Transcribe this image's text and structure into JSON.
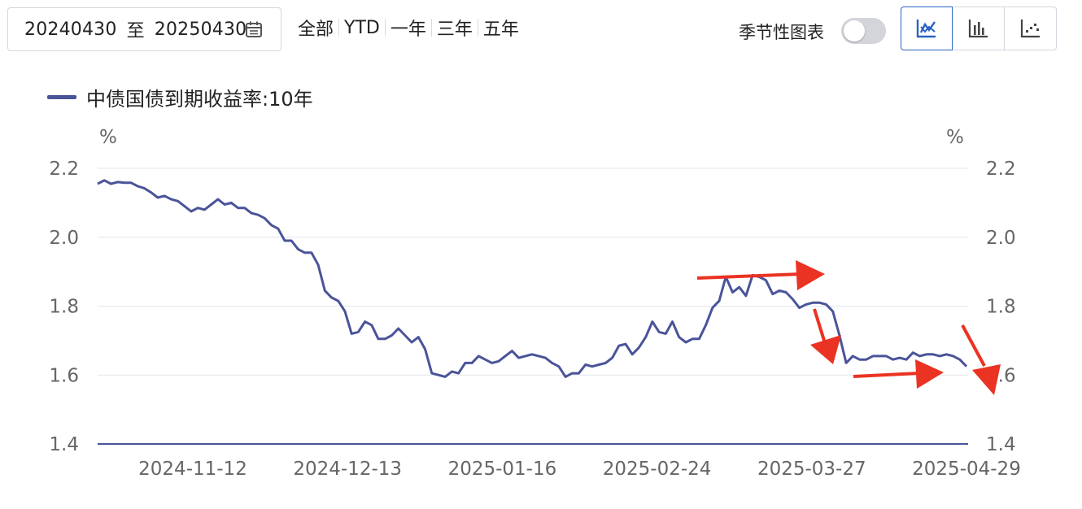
{
  "toolbar": {
    "date_start": "20240430",
    "date_sep": "至",
    "date_end": "20250430",
    "quick_ranges": [
      "全部",
      "YTD",
      "一年",
      "三年",
      "五年"
    ],
    "seasonal_label": "季节性图表",
    "chart_types": [
      "line-chart-icon",
      "bar-chart-icon",
      "scatter-chart-icon"
    ],
    "accent_color": "#2b63c4"
  },
  "chart_data": {
    "type": "line",
    "ylabel": "%",
    "y2label": "%",
    "ylim": [
      1.4,
      2.2
    ],
    "yticks": [
      "1.4",
      "1.6",
      "1.8",
      "2.0",
      "2.2"
    ],
    "xticks": [
      "2024-11-12",
      "2024-12-13",
      "2025-01-16",
      "2025-02-24",
      "2025-03-27",
      "2025-04-29"
    ],
    "grid": true,
    "legend_position": "top-left",
    "series": [
      {
        "name": "中债国债到期收益率:10年",
        "color": "#4a5499",
        "values": [
          2.155,
          2.165,
          2.155,
          2.16,
          2.158,
          2.158,
          2.148,
          2.142,
          2.13,
          2.115,
          2.12,
          2.11,
          2.105,
          2.09,
          2.075,
          2.085,
          2.08,
          2.095,
          2.11,
          2.095,
          2.1,
          2.085,
          2.085,
          2.07,
          2.065,
          2.055,
          2.035,
          2.025,
          1.99,
          1.99,
          1.965,
          1.955,
          1.955,
          1.92,
          1.845,
          1.825,
          1.815,
          1.785,
          1.72,
          1.725,
          1.755,
          1.745,
          1.705,
          1.705,
          1.715,
          1.735,
          1.715,
          1.695,
          1.71,
          1.675,
          1.605,
          1.6,
          1.595,
          1.61,
          1.605,
          1.635,
          1.635,
          1.655,
          1.645,
          1.635,
          1.64,
          1.655,
          1.67,
          1.65,
          1.655,
          1.66,
          1.655,
          1.65,
          1.635,
          1.625,
          1.595,
          1.605,
          1.605,
          1.63,
          1.625,
          1.63,
          1.635,
          1.65,
          1.685,
          1.69,
          1.66,
          1.68,
          1.71,
          1.755,
          1.725,
          1.72,
          1.755,
          1.71,
          1.695,
          1.705,
          1.705,
          1.745,
          1.795,
          1.815,
          1.885,
          1.84,
          1.855,
          1.83,
          1.89,
          1.885,
          1.875,
          1.835,
          1.845,
          1.84,
          1.82,
          1.795,
          1.805,
          1.81,
          1.81,
          1.805,
          1.785,
          1.715,
          1.635,
          1.655,
          1.645,
          1.645,
          1.655,
          1.655,
          1.655,
          1.645,
          1.65,
          1.645,
          1.665,
          1.655,
          1.66,
          1.66,
          1.655,
          1.66,
          1.655,
          1.645,
          1.625
        ]
      }
    ]
  }
}
